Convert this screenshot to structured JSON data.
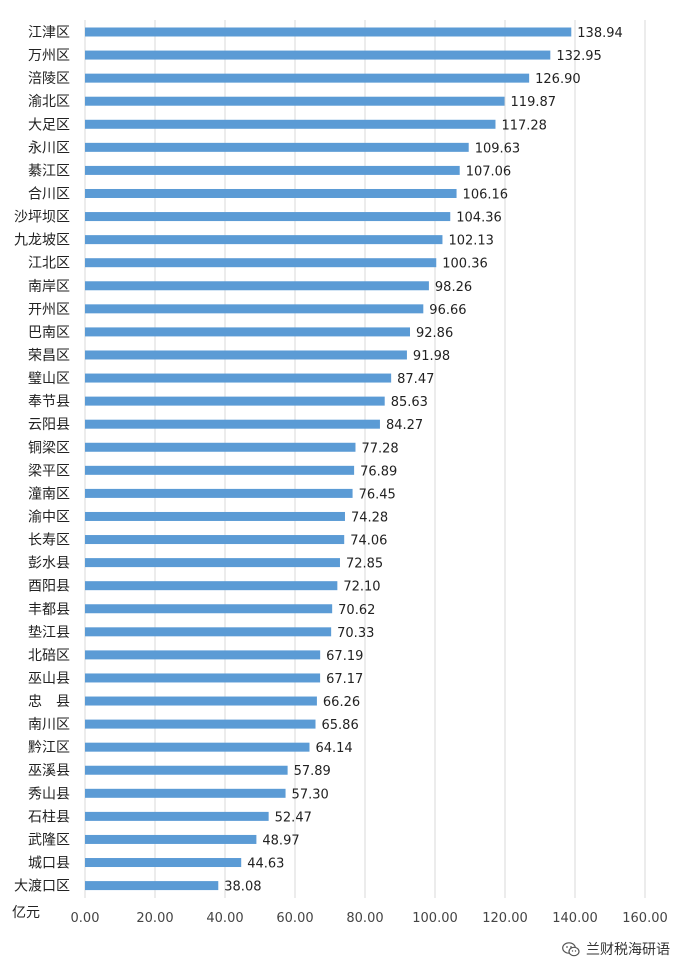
{
  "chart_data": {
    "type": "bar",
    "orientation": "horizontal",
    "categories": [
      "江津区",
      "万州区",
      "涪陵区",
      "渝北区",
      "大足区",
      "永川区",
      "綦江区",
      "合川区",
      "沙坪坝区",
      "九龙坡区",
      "江北区",
      "南岸区",
      "开州区",
      "巴南区",
      "荣昌区",
      "璧山区",
      "奉节县",
      "云阳县",
      "铜梁区",
      "梁平区",
      "潼南区",
      "渝中区",
      "长寿区",
      "彭水县",
      "酉阳县",
      "丰都县",
      "垫江县",
      "北碚区",
      "巫山县",
      "忠　县",
      "南川区",
      "黔江区",
      "巫溪县",
      "秀山县",
      "石柱县",
      "武隆区",
      "城口县",
      "大渡口区"
    ],
    "values": [
      138.94,
      132.95,
      126.9,
      119.87,
      117.28,
      109.63,
      107.06,
      106.16,
      104.36,
      102.13,
      100.36,
      98.26,
      96.66,
      92.86,
      91.98,
      87.47,
      85.63,
      84.27,
      77.28,
      76.89,
      76.45,
      74.28,
      74.06,
      72.85,
      72.1,
      70.62,
      70.33,
      67.19,
      67.17,
      66.26,
      65.86,
      64.14,
      57.89,
      57.3,
      52.47,
      48.97,
      44.63,
      38.08
    ],
    "value_labels": [
      "138.94",
      "132.95",
      "126.90",
      "119.87",
      "117.28",
      "109.63",
      "107.06",
      "106.16",
      "104.36",
      "102.13",
      "100.36",
      "98.26",
      "96.66",
      "92.86",
      "91.98",
      "87.47",
      "85.63",
      "84.27",
      "77.28",
      "76.89",
      "76.45",
      "74.28",
      "74.06",
      "72.85",
      "72.10",
      "70.62",
      "70.33",
      "67.19",
      "67.17",
      "66.26",
      "65.86",
      "64.14",
      "57.89",
      "57.30",
      "52.47",
      "48.97",
      "44.63",
      "38.08"
    ],
    "xlim": [
      0,
      160
    ],
    "xticks": [
      0,
      20,
      40,
      60,
      80,
      100,
      120,
      140,
      160
    ],
    "xtick_labels": [
      "0.00",
      "20.00",
      "40.00",
      "60.00",
      "80.00",
      "100.00",
      "120.00",
      "140.00",
      "160.00"
    ],
    "unit_label": "亿元",
    "grid": true,
    "bar_color": "#5b9bd5"
  },
  "watermark": {
    "text": "兰财税海研语",
    "icon": "wechat-icon"
  }
}
